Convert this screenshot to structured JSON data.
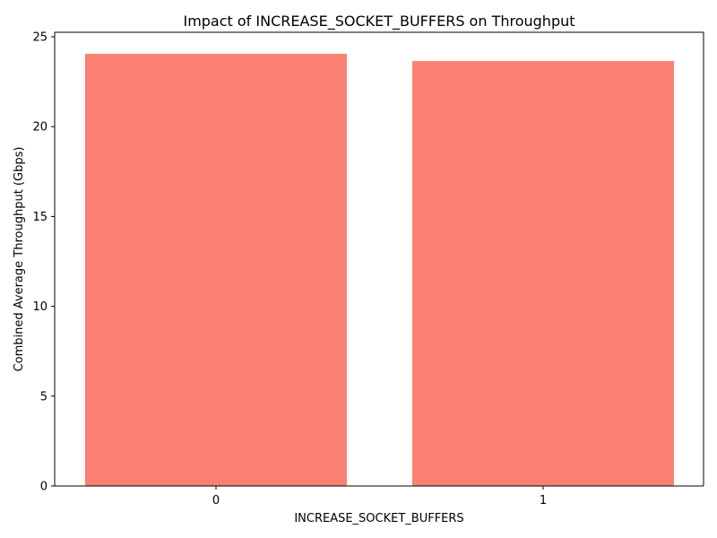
{
  "chart_data": {
    "type": "bar",
    "title": "Impact of INCREASE_SOCKET_BUFFERS on Throughput",
    "xlabel": "INCREASE_SOCKET_BUFFERS",
    "ylabel": "Combined Average Throughput (Gbps)",
    "categories": [
      "0",
      "1"
    ],
    "values": [
      24.05,
      23.65
    ],
    "ylim": [
      0,
      25.25
    ],
    "yticks": [
      0,
      5,
      10,
      15,
      20,
      25
    ],
    "bar_color": "#fa8072",
    "grid": false,
    "legend": "none"
  }
}
